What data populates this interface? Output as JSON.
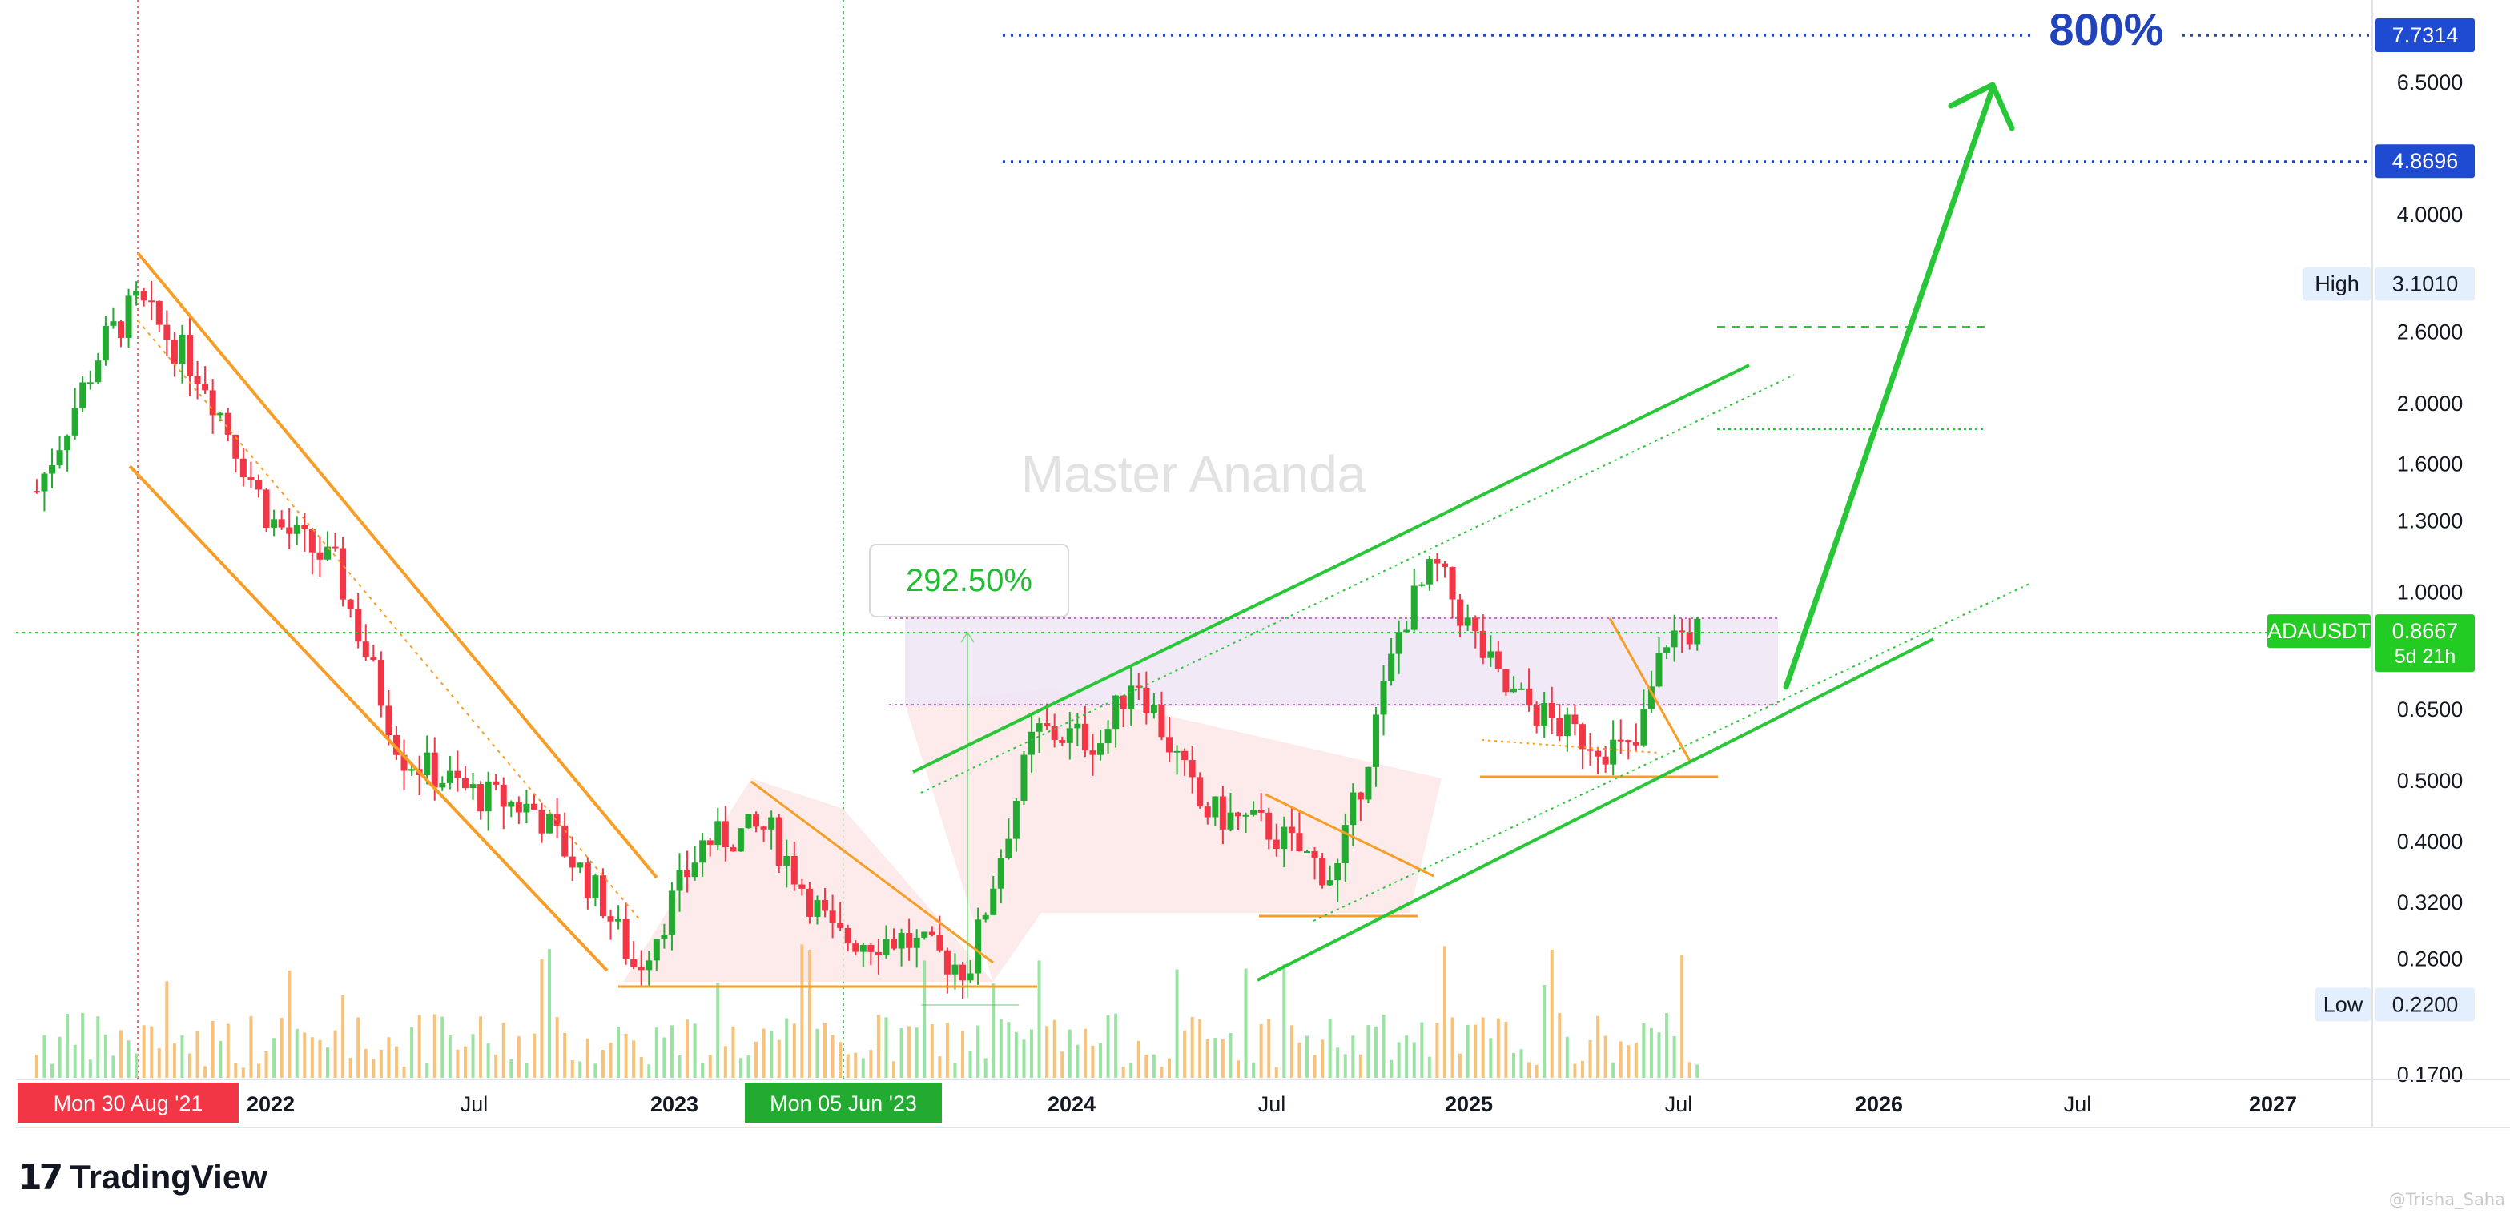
{
  "chart_data": {
    "type": "candlestick",
    "symbol": "ADAUSDT",
    "watermark": "Master Ananda",
    "y_scale": "log",
    "price_axis_ticks": [
      0.17,
      0.22,
      0.26,
      0.32,
      0.4,
      0.5,
      0.65,
      1.0,
      1.3,
      1.6,
      2.0,
      2.6,
      3.101,
      4.0,
      4.8696,
      6.5,
      7.7314
    ],
    "price_axis_labels": [
      "0.1700",
      "0.2600",
      "0.3200",
      "0.4000",
      "0.5000",
      "0.6500",
      "1.0000",
      "1.3000",
      "1.6000",
      "2.0000",
      "2.6000",
      "4.0000",
      "6.5000"
    ],
    "price_tags": [
      {
        "label": "",
        "value": "7.7314",
        "price": 7.7314,
        "color": "#2962ff"
      },
      {
        "label": "",
        "value": "4.8696",
        "price": 4.8696,
        "color": "#2962ff"
      },
      {
        "label": "High",
        "value": "3.1010",
        "price": 3.101,
        "color": "#e3effd"
      },
      {
        "label": "ADAUSDT",
        "value": "0.8667",
        "sub": "5d 21h",
        "price": 0.8667,
        "color": "#22cc22"
      },
      {
        "label": "Low",
        "value": "0.2200",
        "price": 0.22,
        "color": "#e3effd"
      }
    ],
    "time_axis_labels": [
      "2022",
      "Jul",
      "2023",
      "2024",
      "Jul",
      "2025",
      "Jul",
      "2026",
      "Jul",
      "2027"
    ],
    "crosshair_date_labels": [
      {
        "text": "Mon 30 Aug '21",
        "color": "#f23645"
      },
      {
        "text": "Mon 05 Jun '23",
        "color": "#22ab30"
      }
    ],
    "annotations": [
      {
        "text": "800%",
        "kind": "target"
      },
      {
        "text": "292.50%",
        "kind": "measure"
      }
    ],
    "targets": [
      7.7314,
      4.8696
    ],
    "current_price": 0.8667,
    "high": 3.101,
    "low": 0.22,
    "ohlc_anchors_weekly": [
      [
        "2021-06",
        1.45
      ],
      [
        "2021-08",
        2.5
      ],
      [
        "2021-09",
        2.9
      ],
      [
        "2021-11",
        2.2
      ],
      [
        "2022-01",
        1.3
      ],
      [
        "2022-03",
        1.1
      ],
      [
        "2022-05",
        0.55
      ],
      [
        "2022-07",
        0.48
      ],
      [
        "2022-09",
        0.45
      ],
      [
        "2022-11",
        0.32
      ],
      [
        "2022-12",
        0.25
      ],
      [
        "2023-02",
        0.4
      ],
      [
        "2023-04",
        0.42
      ],
      [
        "2023-06",
        0.28
      ],
      [
        "2023-08",
        0.28
      ],
      [
        "2023-10",
        0.25
      ],
      [
        "2023-12",
        0.6
      ],
      [
        "2024-02",
        0.58
      ],
      [
        "2024-03",
        0.75
      ],
      [
        "2024-05",
        0.45
      ],
      [
        "2024-07",
        0.42
      ],
      [
        "2024-09",
        0.35
      ],
      [
        "2024-11",
        0.9
      ],
      [
        "2024-12",
        1.1
      ],
      [
        "2025-02",
        0.7
      ],
      [
        "2025-04",
        0.6
      ],
      [
        "2025-06",
        0.55
      ],
      [
        "2025-07",
        0.85
      ],
      [
        "2025-08",
        0.87
      ]
    ]
  },
  "branding": {
    "logo_mark": "17",
    "logo_text": "TradingView",
    "credit": "@Trisha_Saha"
  }
}
